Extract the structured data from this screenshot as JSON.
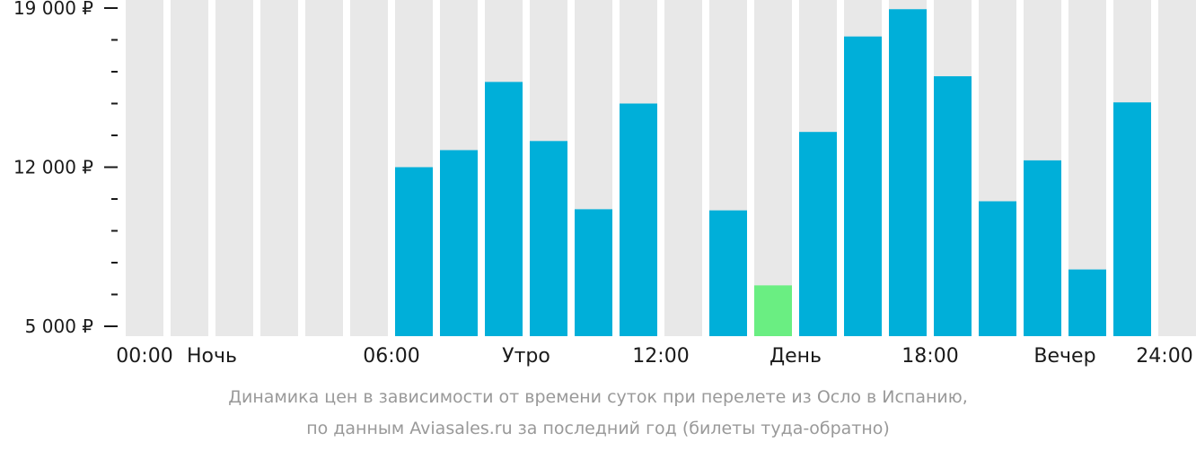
{
  "chart_data": {
    "type": "bar",
    "categories": [
      "00:00",
      "01:00",
      "02:00",
      "03:00",
      "04:00",
      "05:00",
      "06:00",
      "07:00",
      "08:00",
      "09:00",
      "10:00",
      "11:00",
      "12:00",
      "13:00",
      "14:00",
      "15:00",
      "16:00",
      "17:00",
      "18:00",
      "19:00",
      "20:00",
      "21:00",
      "22:00",
      "23:00"
    ],
    "values": [
      null,
      null,
      null,
      null,
      null,
      null,
      12000,
      12750,
      15750,
      13150,
      10150,
      14800,
      null,
      10100,
      6800,
      13550,
      17750,
      18950,
      16000,
      10500,
      12300,
      7500,
      14850,
      null
    ],
    "highlight_index": 14,
    "ylim": [
      5000,
      19000
    ],
    "yticks": [
      {
        "value": 5000,
        "label": "5 000 ₽"
      },
      {
        "value": 12000,
        "label": "12 000 ₽"
      },
      {
        "value": 19000,
        "label": "19 000 ₽"
      }
    ],
    "xticks": [
      {
        "pos": 0,
        "label": "00:00"
      },
      {
        "pos": 2,
        "label": "Ночь"
      },
      {
        "pos": 6,
        "label": "06:00"
      },
      {
        "pos": 9,
        "label": "Утро"
      },
      {
        "pos": 12,
        "label": "12:00"
      },
      {
        "pos": 15,
        "label": "День"
      },
      {
        "pos": 18,
        "label": "18:00"
      },
      {
        "pos": 21,
        "label": "Вечер"
      },
      {
        "pos": 24,
        "label": "24:00"
      }
    ],
    "colors": {
      "bar": "#00afd9",
      "highlight": "#6aee82",
      "background_bar": "#e8e8e8",
      "axis": "#1a1a1a"
    }
  },
  "caption": {
    "line1": "Динамика цен в зависимости от времени суток при перелете из Осло в Испанию,",
    "line2": "по данным Aviasales.ru за последний год (билеты туда-обратно)"
  }
}
